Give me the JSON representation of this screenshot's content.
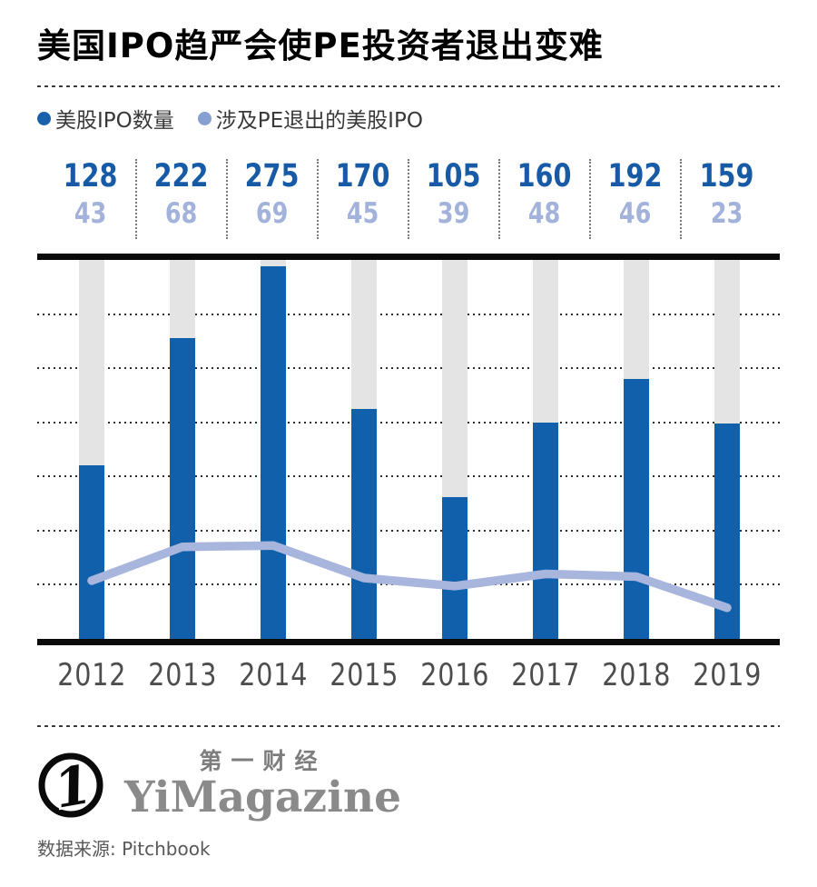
{
  "header": {
    "title": "美国IPO趋严会使PE投资者退出变难"
  },
  "legend": [
    {
      "label": "美股IPO数量",
      "color": "#1A61AD"
    },
    {
      "label": "涉及PE退出的美股IPO",
      "color": "#87A0D2"
    }
  ],
  "chart_data": {
    "type": "bar",
    "categories": [
      "2012",
      "2013",
      "2014",
      "2015",
      "2016",
      "2017",
      "2018",
      "2019"
    ],
    "series": [
      {
        "name": "美股IPO数量",
        "type": "bar",
        "color": "#1160AC",
        "label_color": "#175BA7",
        "values": [
          128,
          222,
          275,
          170,
          105,
          160,
          192,
          159
        ]
      },
      {
        "name": "涉及PE退出的美股IPO",
        "type": "line",
        "color": "#A8B5DC",
        "label_color": "#A2B2DA",
        "values": [
          43,
          68,
          69,
          45,
          39,
          48,
          46,
          23
        ]
      }
    ],
    "title": "美国IPO趋严会使PE投资者退出变难",
    "xlabel": "",
    "ylabel": "",
    "ylim": [
      0,
      280
    ],
    "grid_interval": 40,
    "grid": true,
    "legend_position": "top",
    "background_bar_color": "#E4E4E4"
  },
  "footer": {
    "brand_cn": "第一财经",
    "brand_en": "YiMagazine",
    "source": "数据来源: Pitchbook"
  }
}
